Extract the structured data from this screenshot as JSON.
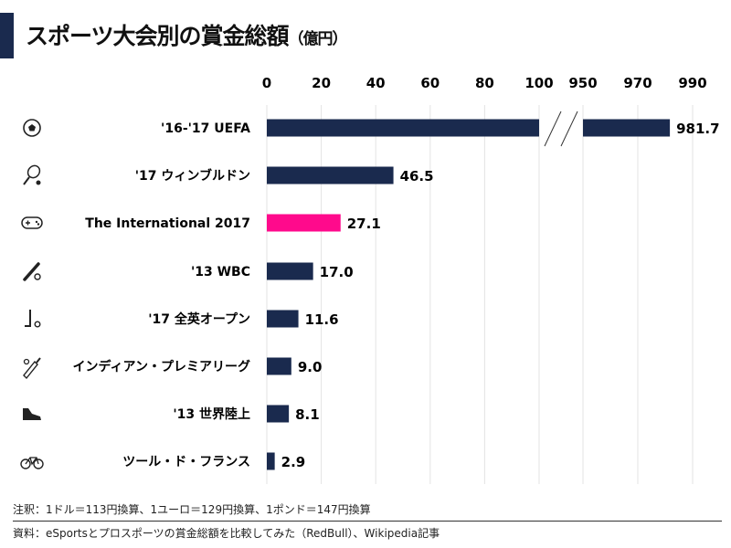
{
  "title": "スポーツ大会別の賞金総額",
  "title_unit": "（億円）",
  "chart_data": {
    "type": "bar",
    "orientation": "horizontal",
    "axis_break": [
      100,
      950
    ],
    "xticks_lower": [
      "0",
      "20",
      "40",
      "60",
      "80",
      "100"
    ],
    "xticks_upper": [
      "950",
      "970",
      "990"
    ],
    "grid": true,
    "categories": [
      "'16-'17 UEFA",
      "'17 ウィンブルドン",
      "The International 2017",
      "'13 WBC",
      "'17 全英オープン",
      "インディアン・プレミアリーグ",
      "'13 世界陸上",
      "ツール・ド・フランス"
    ],
    "icons": [
      "soccer-ball-icon",
      "tennis-racket-icon",
      "game-controller-icon",
      "baseball-bat-icon",
      "golf-club-icon",
      "cricket-bat-icon",
      "running-shoe-icon",
      "bicycle-icon"
    ],
    "values": [
      981.7,
      46.5,
      27.1,
      17.0,
      11.6,
      9.0,
      8.1,
      2.9
    ],
    "labels": [
      "981.7",
      "46.5",
      "27.1",
      "17.0",
      "11.6",
      "9.0",
      "8.1",
      "2.9"
    ],
    "colors": [
      "#1a2a4e",
      "#1a2a4e",
      "#ff0a8c",
      "#1a2a4e",
      "#1a2a4e",
      "#1a2a4e",
      "#1a2a4e",
      "#1a2a4e"
    ]
  },
  "notes": {
    "annotation": "注釈：1ドル＝113円換算、1ユーロ＝129円換算、1ポンド＝147円換算",
    "source": "資料：eSportsとプロスポーツの賞金総額を比較してみた（RedBull）、Wikipedia記事"
  }
}
